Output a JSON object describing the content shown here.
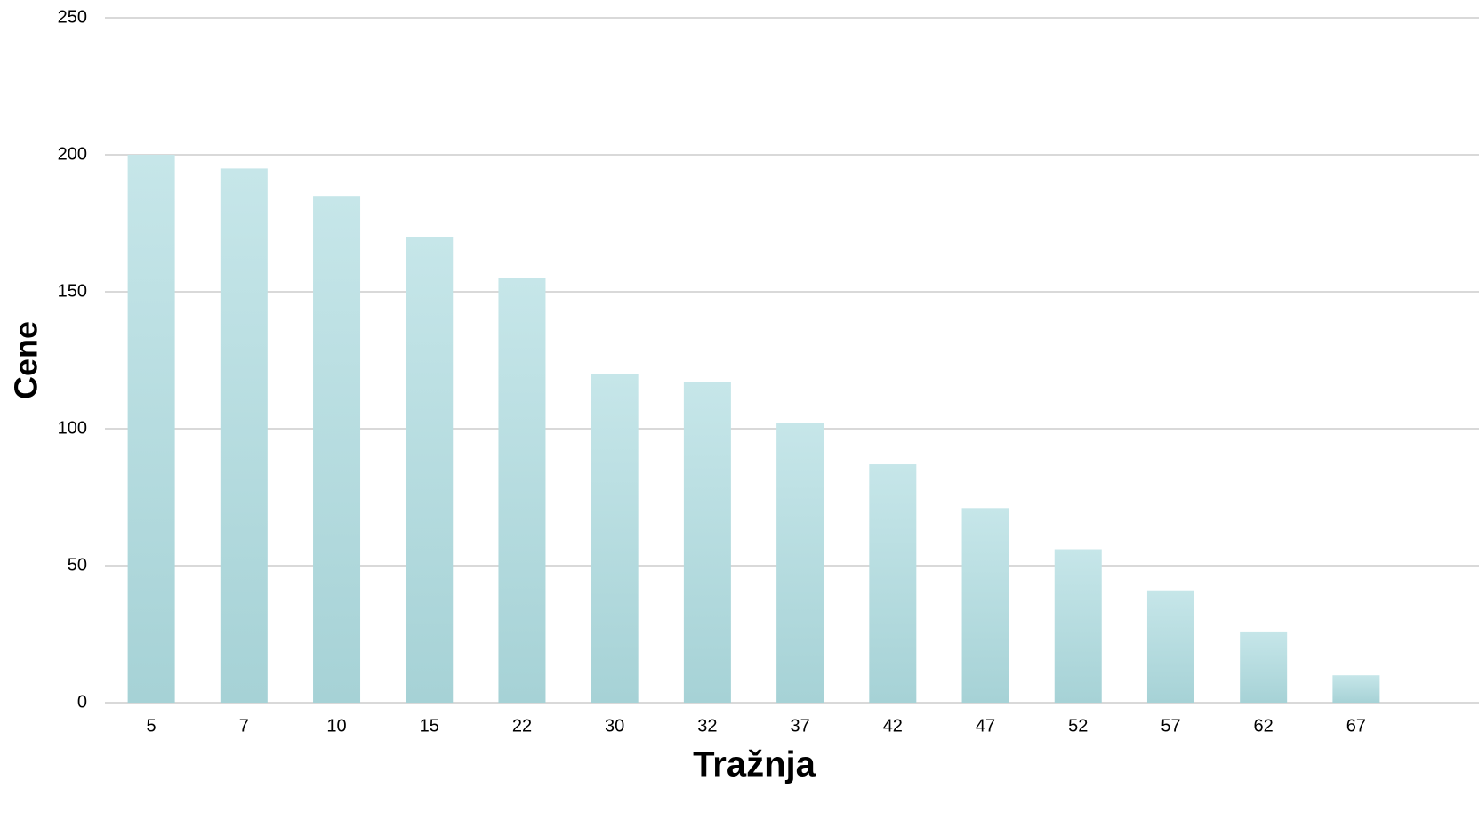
{
  "chart_data": {
    "type": "bar",
    "x_label": "Tražnja",
    "y_label": "Cene",
    "categories": [
      "5",
      "7",
      "10",
      "15",
      "22",
      "30",
      "32",
      "37",
      "42",
      "47",
      "52",
      "57",
      "62",
      "67"
    ],
    "values": [
      200,
      195,
      185,
      170,
      155,
      120,
      117,
      102,
      87,
      71,
      56,
      41,
      26,
      10
    ],
    "color": "#a6d2d6",
    "ylim": [
      0,
      250
    ],
    "yticks": [
      0,
      50,
      100,
      150,
      200,
      250
    ],
    "grid": true
  }
}
